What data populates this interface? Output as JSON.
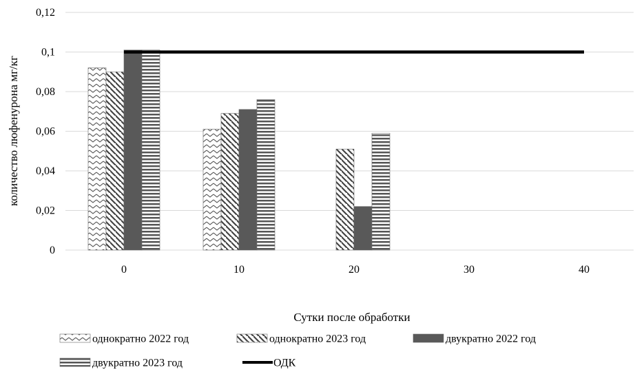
{
  "chart_data": {
    "type": "bar",
    "xlabel": "Сутки после обработки",
    "ylabel": "количество люфенурона мг/кг",
    "categories": [
      "0",
      "10",
      "20",
      "30",
      "40"
    ],
    "ylim": [
      0,
      0.12
    ],
    "y_ticks": [
      "0",
      "0,02",
      "0,04",
      "0,06",
      "0,08",
      "0,1",
      "0,12"
    ],
    "grid": true,
    "legend_position": "bottom",
    "series": [
      {
        "name": "однократно 2022 год",
        "pattern": "zigzag",
        "values": [
          0.092,
          0.061,
          null,
          null,
          null
        ]
      },
      {
        "name": "однократно 2023 год",
        "pattern": "diagonal",
        "values": [
          0.09,
          0.069,
          0.051,
          null,
          null
        ]
      },
      {
        "name": "двукратно 2022 год",
        "pattern": "solid",
        "values": [
          0.101,
          0.071,
          0.022,
          null,
          null
        ]
      },
      {
        "name": "двукратно 2023 год",
        "pattern": "horizontal",
        "values": [
          0.101,
          0.076,
          0.059,
          null,
          null
        ]
      }
    ],
    "reference_line": {
      "name": "ОДК",
      "value": 0.1,
      "from": "0",
      "to": "40",
      "color": "#000000"
    },
    "colors": {
      "bar_dark": "#595959",
      "grid": "#d9d9d9",
      "line": "#000000"
    }
  }
}
